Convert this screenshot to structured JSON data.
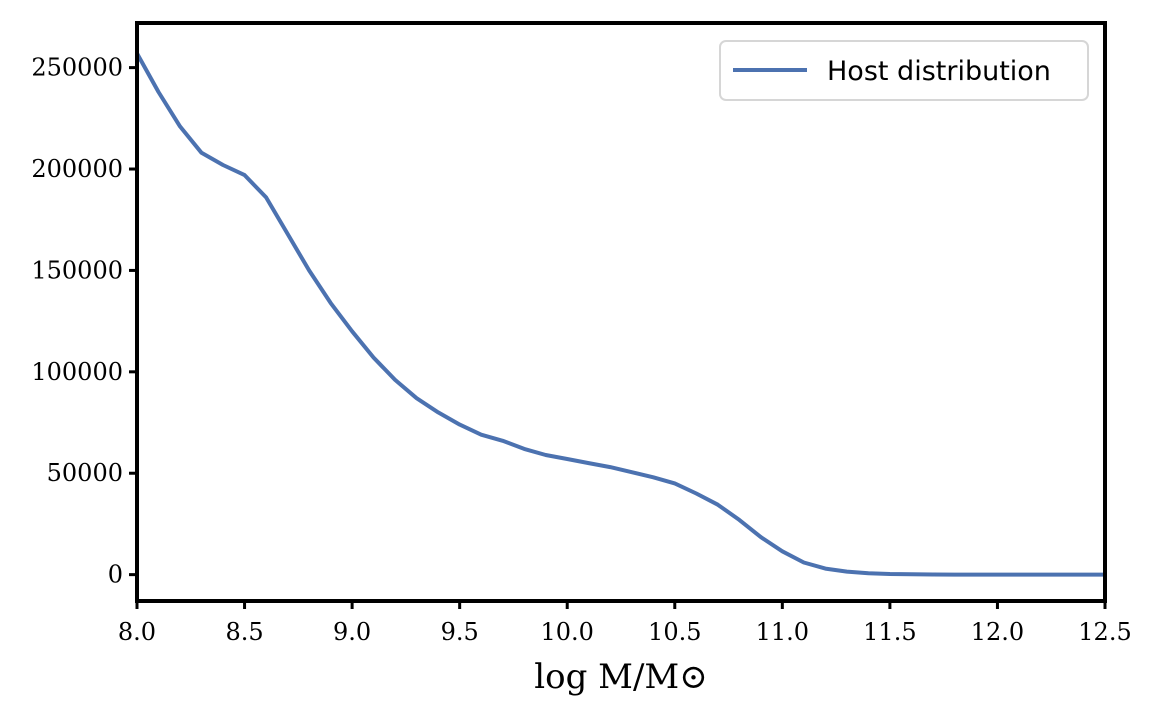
{
  "chart_data": {
    "type": "line",
    "title": "",
    "xlabel": "log M/M⊙",
    "ylabel": "",
    "xlim": [
      8.0,
      12.5
    ],
    "ylim": [
      -13000,
      272000
    ],
    "grid": false,
    "legend_position": "top-right",
    "x_ticks": [
      8.0,
      8.5,
      9.0,
      9.5,
      10.0,
      10.5,
      11.0,
      11.5,
      12.0,
      12.5
    ],
    "x_tick_labels": [
      "8.0",
      "8.5",
      "9.0",
      "9.5",
      "10.0",
      "10.5",
      "11.0",
      "11.5",
      "12.0",
      "12.5"
    ],
    "y_ticks": [
      0,
      50000,
      100000,
      150000,
      200000,
      250000
    ],
    "y_tick_labels": [
      "0",
      "50000",
      "100000",
      "150000",
      "200000",
      "250000"
    ],
    "series": [
      {
        "name": "Host distribution",
        "color": "#4c72b0",
        "x": [
          8.0,
          8.1,
          8.2,
          8.3,
          8.4,
          8.5,
          8.6,
          8.7,
          8.8,
          8.9,
          9.0,
          9.1,
          9.2,
          9.3,
          9.4,
          9.5,
          9.6,
          9.7,
          9.8,
          9.9,
          10.0,
          10.1,
          10.2,
          10.3,
          10.4,
          10.5,
          10.6,
          10.7,
          10.8,
          10.9,
          11.0,
          11.1,
          11.2,
          11.3,
          11.4,
          11.5,
          11.6,
          11.7,
          11.8,
          11.9,
          12.0,
          12.2,
          12.5
        ],
        "y": [
          257000,
          238000,
          221000,
          208000,
          202000,
          197000,
          186000,
          168000,
          150000,
          134000,
          120000,
          107000,
          96000,
          87000,
          80000,
          74000,
          69000,
          66000,
          62000,
          59000,
          57000,
          55000,
          53000,
          50500,
          48000,
          45000,
          40000,
          34500,
          27000,
          18500,
          11500,
          6000,
          3000,
          1500,
          700,
          300,
          150,
          60,
          30,
          10,
          0,
          0,
          0
        ]
      }
    ]
  }
}
